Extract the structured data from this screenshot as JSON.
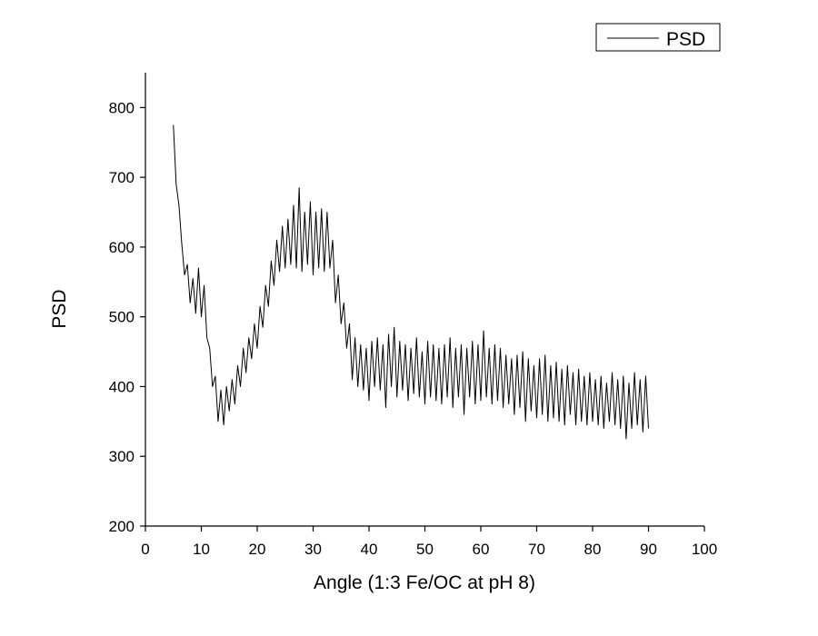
{
  "chart_data": {
    "type": "line",
    "x_label": "Angle (1:3 Fe/OC at pH 8)",
    "y_label": "PSD",
    "xlim": [
      0,
      100
    ],
    "xticks": [
      0,
      10,
      20,
      30,
      40,
      50,
      60,
      70,
      80,
      90,
      100
    ],
    "ylim": [
      200,
      850
    ],
    "yticks": [
      200,
      300,
      400,
      500,
      600,
      700,
      800
    ],
    "legend": "upper right",
    "x": [
      5,
      5.5,
      6,
      6.5,
      7,
      7.5,
      8,
      8.5,
      9,
      9.5,
      10,
      10.5,
      11,
      11.5,
      12,
      12.5,
      13,
      13.5,
      14,
      14.5,
      15,
      15.5,
      16,
      16.5,
      17,
      17.5,
      18,
      18.5,
      19,
      19.5,
      20,
      20.5,
      21,
      21.5,
      22,
      22.5,
      23,
      23.5,
      24,
      24.5,
      25,
      25.5,
      26,
      26.5,
      27,
      27.5,
      28,
      28.5,
      29,
      29.5,
      30,
      30.5,
      31,
      31.5,
      32,
      32.5,
      33,
      33.5,
      34,
      34.5,
      35,
      35.5,
      36,
      36.5,
      37,
      37.5,
      38,
      38.5,
      39,
      39.5,
      40,
      40.5,
      41,
      41.5,
      42,
      42.5,
      43,
      43.5,
      44,
      44.5,
      45,
      45.5,
      46,
      46.5,
      47,
      47.5,
      48,
      48.5,
      49,
      49.5,
      50,
      50.5,
      51,
      51.5,
      52,
      52.5,
      53,
      53.5,
      54,
      54.5,
      55,
      55.5,
      56,
      56.5,
      57,
      57.5,
      58,
      58.5,
      59,
      59.5,
      60,
      60.5,
      61,
      61.5,
      62,
      62.5,
      63,
      63.5,
      64,
      64.5,
      65,
      65.5,
      66,
      66.5,
      67,
      67.5,
      68,
      68.5,
      69,
      69.5,
      70,
      70.5,
      71,
      71.5,
      72,
      72.5,
      73,
      73.5,
      74,
      74.5,
      75,
      75.5,
      76,
      76.5,
      77,
      77.5,
      78,
      78.5,
      79,
      79.5,
      80,
      80.5,
      81,
      81.5,
      82,
      82.5,
      83,
      83.5,
      84,
      84.5,
      85,
      85.5,
      86,
      86.5,
      87,
      87.5,
      88,
      88.5,
      89,
      89.5,
      90
    ],
    "series": [
      {
        "name": "PSD",
        "color": "#000000",
        "values": [
          775,
          690,
          660,
          605,
          560,
          575,
          520,
          555,
          505,
          570,
          500,
          545,
          470,
          455,
          400,
          415,
          350,
          395,
          345,
          400,
          365,
          410,
          375,
          430,
          400,
          455,
          420,
          470,
          440,
          490,
          455,
          515,
          485,
          545,
          515,
          580,
          545,
          610,
          565,
          630,
          570,
          640,
          575,
          660,
          570,
          685,
          565,
          650,
          575,
          665,
          560,
          650,
          570,
          655,
          565,
          650,
          570,
          610,
          520,
          560,
          490,
          520,
          455,
          490,
          410,
          470,
          400,
          460,
          395,
          455,
          380,
          465,
          400,
          470,
          395,
          460,
          370,
          475,
          400,
          485,
          385,
          465,
          395,
          460,
          380,
          455,
          390,
          470,
          385,
          450,
          375,
          465,
          385,
          460,
          380,
          455,
          375,
          460,
          385,
          470,
          370,
          455,
          385,
          460,
          360,
          455,
          385,
          465,
          375,
          460,
          380,
          480,
          385,
          455,
          375,
          460,
          380,
          455,
          370,
          445,
          375,
          440,
          360,
          445,
          370,
          450,
          350,
          440,
          365,
          430,
          355,
          440,
          360,
          445,
          350,
          430,
          355,
          435,
          350,
          425,
          345,
          430,
          360,
          420,
          345,
          425,
          350,
          415,
          345,
          420,
          350,
          410,
          345,
          415,
          340,
          405,
          350,
          420,
          345,
          410,
          340,
          415,
          325,
          405,
          340,
          420,
          345,
          410,
          335,
          415,
          340
        ]
      }
    ]
  }
}
